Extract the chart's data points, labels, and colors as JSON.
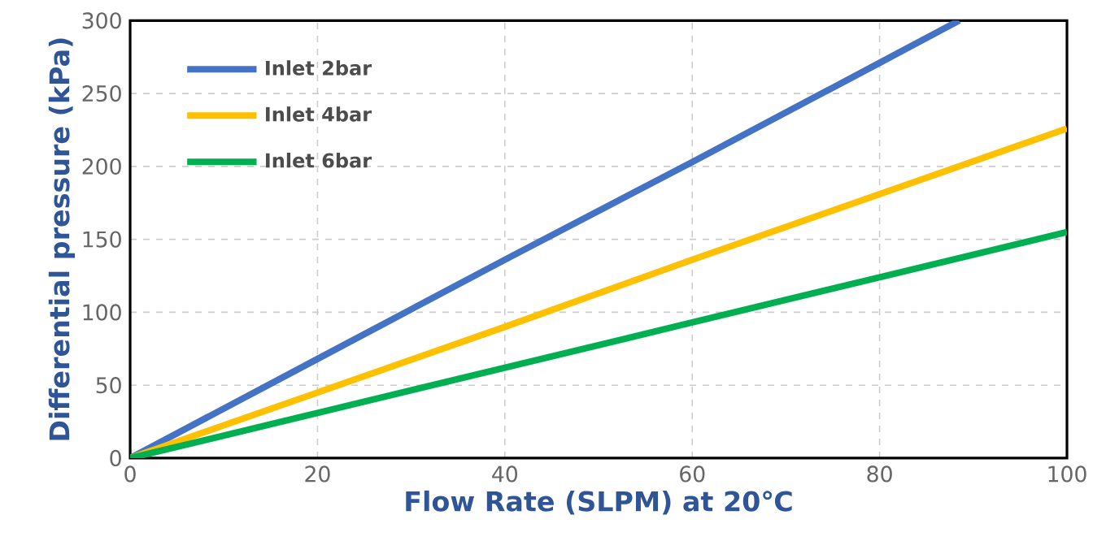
{
  "chart_data": {
    "type": "line",
    "xlabel": "Flow Rate (SLPM) at 20℃",
    "ylabel": "Differential pressure  (kPa)",
    "xlim": [
      0,
      100
    ],
    "ylim": [
      0,
      300
    ],
    "xticks": [
      0,
      20,
      40,
      60,
      80,
      100
    ],
    "yticks": [
      0,
      50,
      100,
      150,
      200,
      250,
      300
    ],
    "grid": true,
    "legend": "top left",
    "marker": "none",
    "line_style": "solid",
    "series": [
      {
        "name": "Inlet 2bar",
        "color": "#4472c4",
        "x": [
          0,
          20,
          40,
          60,
          80,
          88.5
        ],
        "values": [
          0,
          68,
          136,
          203,
          271,
          300
        ]
      },
      {
        "name": "Inlet 4bar",
        "color": "#ffc000",
        "x": [
          0,
          20,
          40,
          60,
          80,
          100
        ],
        "values": [
          0,
          45,
          90,
          136,
          181,
          226
        ]
      },
      {
        "name": "Inlet 6bar",
        "color": "#00b050",
        "x": [
          0,
          20,
          40,
          60,
          80,
          100
        ],
        "values": [
          0,
          31,
          62,
          93,
          124,
          155
        ]
      }
    ]
  }
}
